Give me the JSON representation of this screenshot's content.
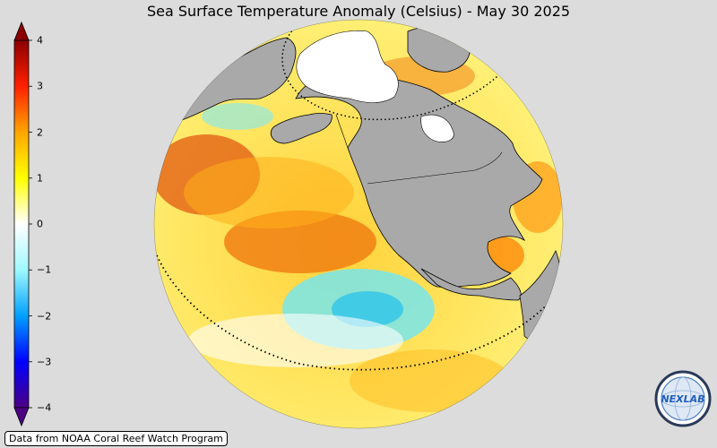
{
  "title": "Sea Surface Temperature Anomaly (Celsius) - May 30 2025",
  "colorbar": {
    "min": -4,
    "max": 4,
    "ticks": [
      "4",
      "3",
      "2",
      "1",
      "0",
      "−1",
      "−2",
      "−3",
      "−4"
    ],
    "colors": [
      "#4b0082",
      "#0000ff",
      "#00a0ff",
      "#9ff8ff",
      "#ffffff",
      "#ffff00",
      "#ffa500",
      "#ff2000",
      "#8b0000"
    ]
  },
  "map": {
    "land_color": "#a9a9a9",
    "coastline_color": "#000000",
    "projection": "orthographic"
  },
  "source_note": "Data from NOAA Coral Reef Watch Program",
  "logo": {
    "text": "NEXLAB",
    "icon": "nexlab-globe-logo-icon"
  }
}
